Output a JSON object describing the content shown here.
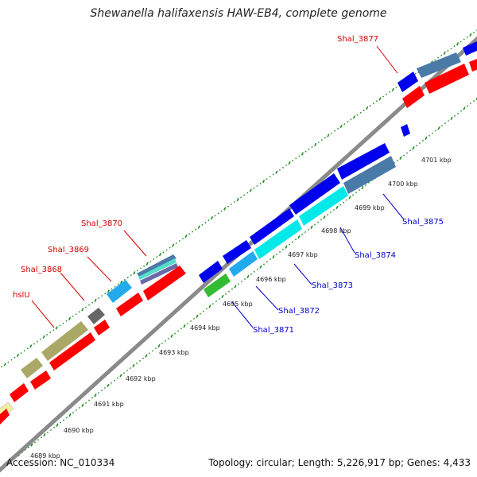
{
  "title": "Shewanella halifaxensis HAW-EB4, complete genome",
  "footer": {
    "accession": "Accession: NC_010334",
    "topology": "Topology: circular; Length: 5,226,917 bp; Genes: 4,433"
  },
  "colors": {
    "backbone": "#999999",
    "dots": "#1e8c1e",
    "label_red": "#d40000",
    "label_blue": "#0000cc",
    "gene_blue": "#0000ee",
    "gene_red": "#ff0000",
    "gene_cyan": "#00e8e8",
    "gene_lightblue": "#22aaee",
    "gene_steel": "#4a7aa8",
    "gene_olive": "#aaa866",
    "gene_green": "#33bb33",
    "gene_gray": "#666666",
    "gene_yellow": "#f2eea4"
  },
  "tick_labels": [
    "4689 kbp",
    "4690 kbp",
    "4691 kbp",
    "4692 kbp",
    "4693 kbp",
    "4694 kbp",
    "4695 kbp",
    "4696 kbp",
    "4697 kbp",
    "4698 kbp",
    "4699 kbp",
    "4700 kbp",
    "4701 kbp"
  ],
  "gene_labels": [
    {
      "text": "Shal_3877",
      "color": "red"
    },
    {
      "text": "Shal_3870",
      "color": "red"
    },
    {
      "text": "Shal_3869",
      "color": "red"
    },
    {
      "text": "Shal_3868",
      "color": "red"
    },
    {
      "text": "hslU",
      "color": "red"
    },
    {
      "text": "Shal_3875",
      "color": "blue"
    },
    {
      "text": "Shal_3874",
      "color": "blue"
    },
    {
      "text": "Shal_3873",
      "color": "blue"
    },
    {
      "text": "Shal_3872",
      "color": "blue"
    },
    {
      "text": "Shal_3871",
      "color": "blue"
    }
  ]
}
